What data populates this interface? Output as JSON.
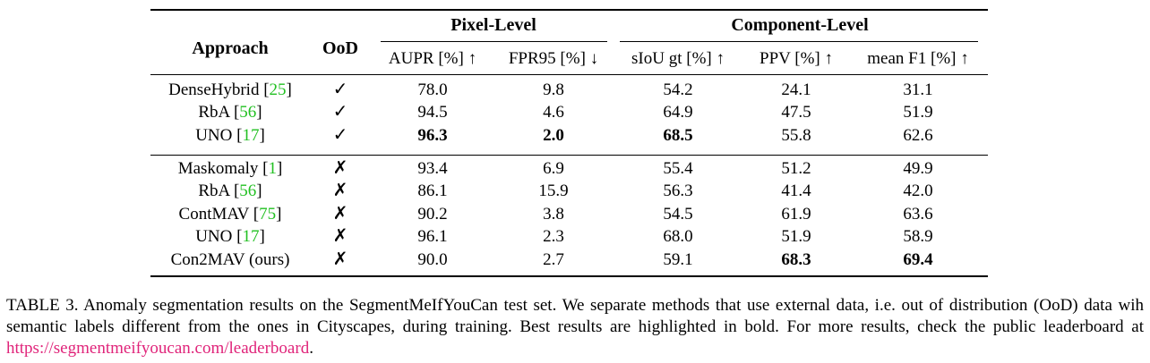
{
  "table": {
    "headers": {
      "approach": "Approach",
      "ood": "OoD",
      "group_pixel": "Pixel-Level",
      "group_component": "Component-Level",
      "columns": [
        "AUPR [%] ↑",
        "FPR95 [%] ↓",
        "sIoU gt [%] ↑",
        "PPV [%] ↑",
        "mean F1 [%] ↑"
      ]
    },
    "rows": [
      {
        "name": "DenseHybrid",
        "ref": "25",
        "ood": "✓",
        "values": [
          "78.0",
          "9.8",
          "54.2",
          "24.1",
          "31.1"
        ],
        "bold": [
          false,
          false,
          false,
          false,
          false
        ]
      },
      {
        "name": "RbA",
        "ref": "56",
        "ood": "✓",
        "values": [
          "94.5",
          "4.6",
          "64.9",
          "47.5",
          "51.9"
        ],
        "bold": [
          false,
          false,
          false,
          false,
          false
        ]
      },
      {
        "name": "UNO",
        "ref": "17",
        "ood": "✓",
        "values": [
          "96.3",
          "2.0",
          "68.5",
          "55.8",
          "62.6"
        ],
        "bold": [
          true,
          true,
          true,
          false,
          false
        ]
      },
      {
        "name": "Maskomaly",
        "ref": "1",
        "ood": "✗",
        "values": [
          "93.4",
          "6.9",
          "55.4",
          "51.2",
          "49.9"
        ],
        "bold": [
          false,
          false,
          false,
          false,
          false
        ]
      },
      {
        "name": "RbA",
        "ref": "56",
        "ood": "✗",
        "values": [
          "86.1",
          "15.9",
          "56.3",
          "41.4",
          "42.0"
        ],
        "bold": [
          false,
          false,
          false,
          false,
          false
        ]
      },
      {
        "name": "ContMAV",
        "ref": "75",
        "ood": "✗",
        "values": [
          "90.2",
          "3.8",
          "54.5",
          "61.9",
          "63.6"
        ],
        "bold": [
          false,
          false,
          false,
          false,
          false
        ]
      },
      {
        "name": "UNO",
        "ref": "17",
        "ood": "✗",
        "values": [
          "96.1",
          "2.3",
          "68.0",
          "51.9",
          "58.9"
        ],
        "bold": [
          false,
          false,
          false,
          false,
          false
        ]
      },
      {
        "name": "Con2MAV (ours)",
        "ref": "",
        "ood": "✗",
        "values": [
          "90.0",
          "2.7",
          "59.1",
          "68.3",
          "69.4"
        ],
        "bold": [
          false,
          false,
          false,
          true,
          true
        ]
      }
    ]
  },
  "caption": {
    "text": "TABLE 3. Anomaly segmentation results on the SegmentMeIfYouCan test set. We separate methods that use external data, i.e. out of distribution (OoD) data wih semantic labels different from the ones in Cityscapes, during training. Best results are highlighted in bold. For more results, check the public leaderboard at ",
    "link": "https://segmentmeifyoucan.com/leaderboard",
    "end": "."
  }
}
